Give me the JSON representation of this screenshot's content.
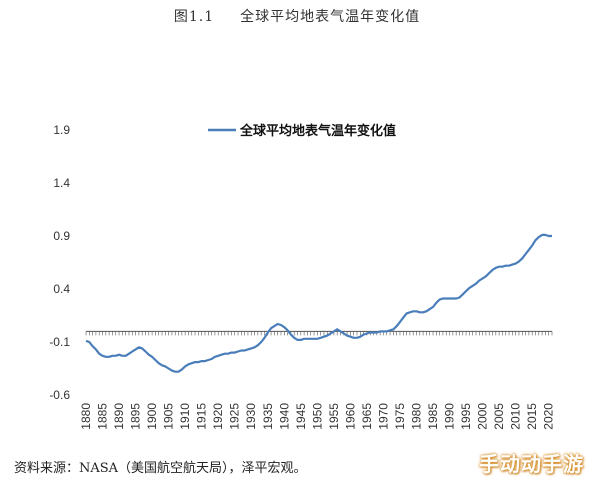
{
  "figure": {
    "number": "图1.1",
    "title": "全球平均地表气温年变化值"
  },
  "source_note": "资料来源：NASA（美国航空航天局），泽平宏观。",
  "watermark": "手动动手游",
  "colors": {
    "line": "#4a7ebb",
    "axis": "#555555",
    "text": "#333333"
  },
  "chart_data": {
    "type": "line",
    "title": "",
    "xlabel": "",
    "ylabel": "",
    "xlim": [
      1880,
      2021
    ],
    "ylim": [
      -0.6,
      1.9
    ],
    "y_ticks": [
      "1.9",
      "1.4",
      "0.9",
      "0.4",
      "-0.1",
      "-0.6"
    ],
    "x_ticks": [
      "1880",
      "1885",
      "1890",
      "1895",
      "1900",
      "1905",
      "1910",
      "1915",
      "1920",
      "1925",
      "1930",
      "1935",
      "1940",
      "1945",
      "1950",
      "1955",
      "1960",
      "1965",
      "1970",
      "1975",
      "1980",
      "1985",
      "1990",
      "1995",
      "2000",
      "2005",
      "2010",
      "2015",
      "2020"
    ],
    "legend": {
      "position": "top-center"
    },
    "series": [
      {
        "name": "全球平均地表气温年变化值",
        "x": [
          1880,
          1881,
          1882,
          1883,
          1884,
          1885,
          1886,
          1887,
          1888,
          1889,
          1890,
          1891,
          1892,
          1893,
          1894,
          1895,
          1896,
          1897,
          1898,
          1899,
          1900,
          1901,
          1902,
          1903,
          1904,
          1905,
          1906,
          1907,
          1908,
          1909,
          1910,
          1911,
          1912,
          1913,
          1914,
          1915,
          1916,
          1917,
          1918,
          1919,
          1920,
          1921,
          1922,
          1923,
          1924,
          1925,
          1926,
          1927,
          1928,
          1929,
          1930,
          1931,
          1932,
          1933,
          1934,
          1935,
          1936,
          1937,
          1938,
          1939,
          1940,
          1941,
          1942,
          1943,
          1944,
          1945,
          1946,
          1947,
          1948,
          1949,
          1950,
          1951,
          1952,
          1953,
          1954,
          1955,
          1956,
          1957,
          1958,
          1959,
          1960,
          1961,
          1962,
          1963,
          1964,
          1965,
          1966,
          1967,
          1968,
          1969,
          1970,
          1971,
          1972,
          1973,
          1974,
          1975,
          1976,
          1977,
          1978,
          1979,
          1980,
          1981,
          1982,
          1983,
          1984,
          1985,
          1986,
          1987,
          1988,
          1989,
          1990,
          1991,
          1992,
          1993,
          1994,
          1995,
          1996,
          1997,
          1998,
          1999,
          2000,
          2001,
          2002,
          2003,
          2004,
          2005,
          2006,
          2007,
          2008,
          2009,
          2010,
          2011,
          2012,
          2013,
          2014,
          2015,
          2016,
          2017,
          2018,
          2019,
          2020,
          2021
        ],
        "values": [
          -0.09,
          -0.1,
          -0.14,
          -0.17,
          -0.21,
          -0.23,
          -0.24,
          -0.24,
          -0.23,
          -0.23,
          -0.22,
          -0.23,
          -0.23,
          -0.21,
          -0.19,
          -0.17,
          -0.15,
          -0.16,
          -0.19,
          -0.22,
          -0.24,
          -0.27,
          -0.3,
          -0.32,
          -0.33,
          -0.35,
          -0.37,
          -0.38,
          -0.38,
          -0.36,
          -0.33,
          -0.31,
          -0.3,
          -0.29,
          -0.29,
          -0.28,
          -0.28,
          -0.27,
          -0.26,
          -0.24,
          -0.23,
          -0.22,
          -0.21,
          -0.21,
          -0.2,
          -0.2,
          -0.19,
          -0.18,
          -0.18,
          -0.17,
          -0.16,
          -0.15,
          -0.13,
          -0.1,
          -0.06,
          -0.01,
          0.03,
          0.05,
          0.07,
          0.06,
          0.04,
          0.01,
          -0.03,
          -0.06,
          -0.08,
          -0.08,
          -0.07,
          -0.07,
          -0.07,
          -0.07,
          -0.07,
          -0.06,
          -0.05,
          -0.04,
          -0.02,
          0.0,
          0.02,
          0.0,
          -0.02,
          -0.04,
          -0.05,
          -0.06,
          -0.06,
          -0.05,
          -0.03,
          -0.02,
          -0.01,
          -0.01,
          -0.01,
          0.0,
          0.0,
          0.0,
          0.01,
          0.02,
          0.05,
          0.09,
          0.13,
          0.17,
          0.18,
          0.19,
          0.19,
          0.18,
          0.18,
          0.19,
          0.21,
          0.23,
          0.27,
          0.3,
          0.31,
          0.31,
          0.31,
          0.31,
          0.31,
          0.32,
          0.35,
          0.38,
          0.41,
          0.43,
          0.45,
          0.48,
          0.5,
          0.52,
          0.55,
          0.58,
          0.6,
          0.61,
          0.61,
          0.62,
          0.62,
          0.63,
          0.64,
          0.66,
          0.69,
          0.73,
          0.77,
          0.81,
          0.86,
          0.89,
          0.91,
          0.91,
          0.9,
          0.9
        ]
      }
    ]
  }
}
